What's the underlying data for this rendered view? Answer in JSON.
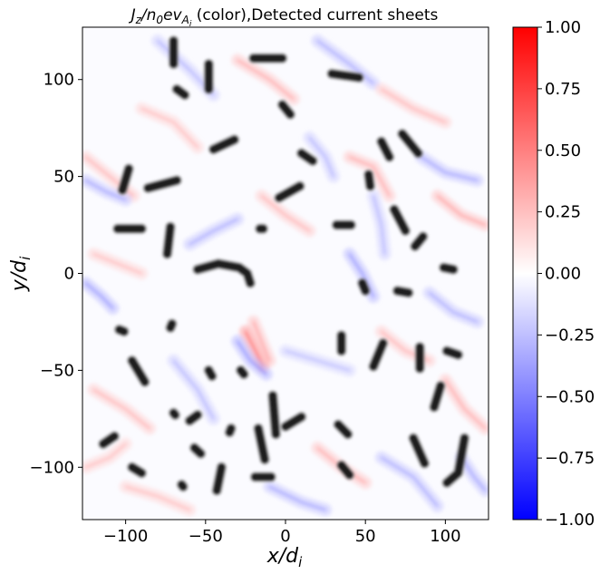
{
  "chart_data": {
    "type": "heatmap",
    "title": {
      "main": "J",
      "sub1": "z",
      "slash": "/n",
      "sub2": "0",
      "mid": "ev",
      "sub3": "A",
      "sub4": "i",
      "rest": " (color),Detected current sheets"
    },
    "xlabel": {
      "main": "x/d",
      "sub": "i"
    },
    "ylabel": {
      "main": "y/d",
      "sub": "i"
    },
    "xlim": [
      -127,
      127
    ],
    "ylim": [
      -127,
      127
    ],
    "xticks": [
      -100,
      -50,
      0,
      50,
      100
    ],
    "yticks": [
      -100,
      -50,
      0,
      50,
      100
    ],
    "xtick_labels": [
      "−100",
      "−50",
      "0",
      "50",
      "100"
    ],
    "ytick_labels": [
      "−100",
      "−50",
      "0",
      "50",
      "100"
    ],
    "colorbar": {
      "colormap": "bwr",
      "vmin": -1.0,
      "vmax": 1.0,
      "ticks": [
        1.0,
        0.75,
        0.5,
        0.25,
        0.0,
        -0.25,
        -0.5,
        -0.75,
        -1.0
      ],
      "tick_labels": [
        "1.00",
        "0.75",
        "0.50",
        "0.25",
        "0.00",
        "−0.25",
        "−0.50",
        "−0.75",
        "−1.00"
      ],
      "colors": {
        "top": "#ff0000",
        "mid": "#ffffff",
        "bottom": "#0000ff"
      }
    },
    "field_streaks": [
      {
        "value": 0.4,
        "points": [
          [
            -125,
            60
          ],
          [
            -110,
            50
          ],
          [
            -95,
            40
          ]
        ]
      },
      {
        "value": -0.5,
        "points": [
          [
            -125,
            48
          ],
          [
            -112,
            42
          ],
          [
            -100,
            38
          ]
        ]
      },
      {
        "value": 0.35,
        "points": [
          [
            -90,
            85
          ],
          [
            -70,
            78
          ],
          [
            -55,
            65
          ]
        ]
      },
      {
        "value": -0.4,
        "points": [
          [
            -80,
            120
          ],
          [
            -60,
            105
          ],
          [
            -45,
            92
          ]
        ]
      },
      {
        "value": 0.45,
        "points": [
          [
            -30,
            110
          ],
          [
            -10,
            100
          ],
          [
            5,
            90
          ]
        ]
      },
      {
        "value": -0.45,
        "points": [
          [
            20,
            120
          ],
          [
            40,
            108
          ],
          [
            55,
            98
          ]
        ]
      },
      {
        "value": 0.4,
        "points": [
          [
            60,
            95
          ],
          [
            80,
            85
          ],
          [
            100,
            78
          ]
        ]
      },
      {
        "value": -0.5,
        "points": [
          [
            85,
            60
          ],
          [
            100,
            52
          ],
          [
            120,
            48
          ]
        ]
      },
      {
        "value": 0.5,
        "points": [
          [
            95,
            40
          ],
          [
            110,
            30
          ],
          [
            125,
            25
          ]
        ]
      },
      {
        "value": -0.4,
        "points": [
          [
            55,
            40
          ],
          [
            60,
            25
          ],
          [
            62,
            10
          ]
        ]
      },
      {
        "value": 0.45,
        "points": [
          [
            40,
            60
          ],
          [
            55,
            55
          ],
          [
            65,
            40
          ]
        ]
      },
      {
        "value": -0.45,
        "points": [
          [
            -60,
            15
          ],
          [
            -45,
            22
          ],
          [
            -30,
            28
          ]
        ]
      },
      {
        "value": 0.35,
        "points": [
          [
            -120,
            10
          ],
          [
            -105,
            5
          ],
          [
            -90,
            0
          ]
        ]
      },
      {
        "value": -0.55,
        "points": [
          [
            -125,
            -5
          ],
          [
            -115,
            -12
          ],
          [
            -108,
            -18
          ]
        ]
      },
      {
        "value": 0.5,
        "points": [
          [
            -20,
            -25
          ],
          [
            -15,
            -35
          ],
          [
            -10,
            -45
          ]
        ]
      },
      {
        "value": 0.8,
        "points": [
          [
            -25,
            -30
          ],
          [
            -20,
            -38
          ],
          [
            -14,
            -48
          ]
        ]
      },
      {
        "value": -0.6,
        "points": [
          [
            -30,
            -35
          ],
          [
            -22,
            -45
          ],
          [
            -12,
            -52
          ]
        ]
      },
      {
        "value": -0.35,
        "points": [
          [
            0,
            -40
          ],
          [
            20,
            -45
          ],
          [
            40,
            -50
          ]
        ]
      },
      {
        "value": 0.4,
        "points": [
          [
            60,
            -30
          ],
          [
            75,
            -40
          ],
          [
            90,
            -45
          ]
        ]
      },
      {
        "value": -0.45,
        "points": [
          [
            90,
            -10
          ],
          [
            105,
            -20
          ],
          [
            120,
            -25
          ]
        ]
      },
      {
        "value": 0.45,
        "points": [
          [
            100,
            -55
          ],
          [
            112,
            -70
          ],
          [
            125,
            -80
          ]
        ]
      },
      {
        "value": -0.5,
        "points": [
          [
            110,
            -95
          ],
          [
            118,
            -105
          ],
          [
            125,
            -112
          ]
        ]
      },
      {
        "value": 0.4,
        "points": [
          [
            -120,
            -60
          ],
          [
            -100,
            -70
          ],
          [
            -85,
            -80
          ]
        ]
      },
      {
        "value": -0.4,
        "points": [
          [
            -70,
            -45
          ],
          [
            -55,
            -60
          ],
          [
            -45,
            -75
          ]
        ]
      },
      {
        "value": 0.35,
        "points": [
          [
            -100,
            -110
          ],
          [
            -80,
            -115
          ],
          [
            -60,
            -122
          ]
        ]
      },
      {
        "value": -0.5,
        "points": [
          [
            -10,
            -110
          ],
          [
            10,
            -118
          ],
          [
            25,
            -122
          ]
        ]
      },
      {
        "value": 0.45,
        "points": [
          [
            20,
            -90
          ],
          [
            35,
            -100
          ],
          [
            50,
            -108
          ]
        ]
      },
      {
        "value": -0.45,
        "points": [
          [
            60,
            -95
          ],
          [
            80,
            -105
          ],
          [
            95,
            -120
          ]
        ]
      },
      {
        "value": 0.35,
        "points": [
          [
            -125,
            -100
          ],
          [
            -110,
            -95
          ],
          [
            -100,
            -88
          ]
        ]
      },
      {
        "value": -0.55,
        "points": [
          [
            40,
            10
          ],
          [
            48,
            0
          ],
          [
            55,
            -12
          ]
        ]
      },
      {
        "value": 0.4,
        "points": [
          [
            -15,
            40
          ],
          [
            0,
            30
          ],
          [
            15,
            22
          ]
        ]
      },
      {
        "value": -0.4,
        "points": [
          [
            15,
            70
          ],
          [
            25,
            60
          ],
          [
            30,
            50
          ]
        ]
      }
    ],
    "detected_sheets": [
      [
        [
          -70,
          120
        ],
        [
          -70,
          108
        ]
      ],
      [
        [
          -48,
          108
        ],
        [
          -48,
          95
        ]
      ],
      [
        [
          -20,
          111
        ],
        [
          -2,
          111
        ]
      ],
      [
        [
          29,
          103
        ],
        [
          46,
          101
        ]
      ],
      [
        [
          -68,
          95
        ],
        [
          -63,
          92
        ]
      ],
      [
        [
          -2,
          87
        ],
        [
          3,
          82
        ]
      ],
      [
        [
          -45,
          64
        ],
        [
          -32,
          69
        ]
      ],
      [
        [
          60,
          68
        ],
        [
          65,
          60
        ]
      ],
      [
        [
          73,
          72
        ],
        [
          83,
          62
        ]
      ],
      [
        [
          10,
          62
        ],
        [
          17,
          58
        ]
      ],
      [
        [
          -98,
          54
        ],
        [
          -102,
          43
        ]
      ],
      [
        [
          -86,
          44
        ],
        [
          -68,
          48
        ]
      ],
      [
        [
          -4,
          39
        ],
        [
          9,
          45
        ]
      ],
      [
        [
          52,
          51
        ],
        [
          53,
          45
        ]
      ],
      [
        [
          68,
          33
        ],
        [
          75,
          22
        ]
      ],
      [
        [
          -105,
          23
        ],
        [
          -90,
          23
        ]
      ],
      [
        [
          -72,
          24
        ],
        [
          -74,
          10
        ]
      ],
      [
        [
          -16,
          23
        ],
        [
          -14,
          23
        ]
      ],
      [
        [
          32,
          25
        ],
        [
          41,
          25
        ]
      ],
      [
        [
          86,
          19
        ],
        [
          81,
          14
        ]
      ],
      [
        [
          -55,
          2
        ],
        [
          -42,
          5
        ],
        [
          -29,
          3
        ],
        [
          -24,
          0
        ],
        [
          -22,
          -5
        ]
      ],
      [
        [
          99,
          3
        ],
        [
          105,
          2
        ]
      ],
      [
        [
          48,
          -5
        ],
        [
          50,
          -9
        ]
      ],
      [
        [
          70,
          -9
        ],
        [
          77,
          -10
        ]
      ],
      [
        [
          -104,
          -29
        ],
        [
          -101,
          -30
        ]
      ],
      [
        [
          -71,
          -26
        ],
        [
          -72,
          -28
        ]
      ],
      [
        [
          35,
          -32
        ],
        [
          35,
          -40
        ]
      ],
      [
        [
          61,
          -36
        ],
        [
          55,
          -48
        ]
      ],
      [
        [
          84,
          -38
        ],
        [
          84,
          -49
        ]
      ],
      [
        [
          101,
          -40
        ],
        [
          108,
          -42
        ]
      ],
      [
        [
          -96,
          -45
        ],
        [
          -88,
          -56
        ]
      ],
      [
        [
          -48,
          -50
        ],
        [
          -46,
          -53
        ]
      ],
      [
        [
          -28,
          -50
        ],
        [
          -26,
          -52
        ]
      ],
      [
        [
          -8,
          -63
        ],
        [
          -6,
          -83
        ]
      ],
      [
        [
          -17,
          -80
        ],
        [
          -13,
          -96
        ]
      ],
      [
        [
          97,
          -58
        ],
        [
          93,
          -69
        ]
      ],
      [
        [
          -70,
          -72
        ],
        [
          -69,
          -73
        ]
      ],
      [
        [
          -34,
          -80
        ],
        [
          -35,
          -82
        ]
      ],
      [
        [
          0,
          -79
        ],
        [
          10,
          -74
        ]
      ],
      [
        [
          -114,
          -88
        ],
        [
          -107,
          -84
        ]
      ],
      [
        [
          -60,
          -76
        ],
        [
          -55,
          -73
        ]
      ],
      [
        [
          33,
          -78
        ],
        [
          39,
          -83
        ]
      ],
      [
        [
          80,
          -85
        ],
        [
          87,
          -98
        ]
      ],
      [
        [
          112,
          -85
        ],
        [
          108,
          -103
        ],
        [
          101,
          -108
        ]
      ],
      [
        [
          -57,
          -90
        ],
        [
          -53,
          -93
        ]
      ],
      [
        [
          -40,
          -100
        ],
        [
          -43,
          -112
        ]
      ],
      [
        [
          -96,
          -100
        ],
        [
          -90,
          -103
        ]
      ],
      [
        [
          -19,
          -105
        ],
        [
          -9,
          -105
        ]
      ],
      [
        [
          35,
          -99
        ],
        [
          40,
          -104
        ]
      ],
      [
        [
          -65,
          -109
        ],
        [
          -64,
          -110
        ]
      ]
    ]
  }
}
